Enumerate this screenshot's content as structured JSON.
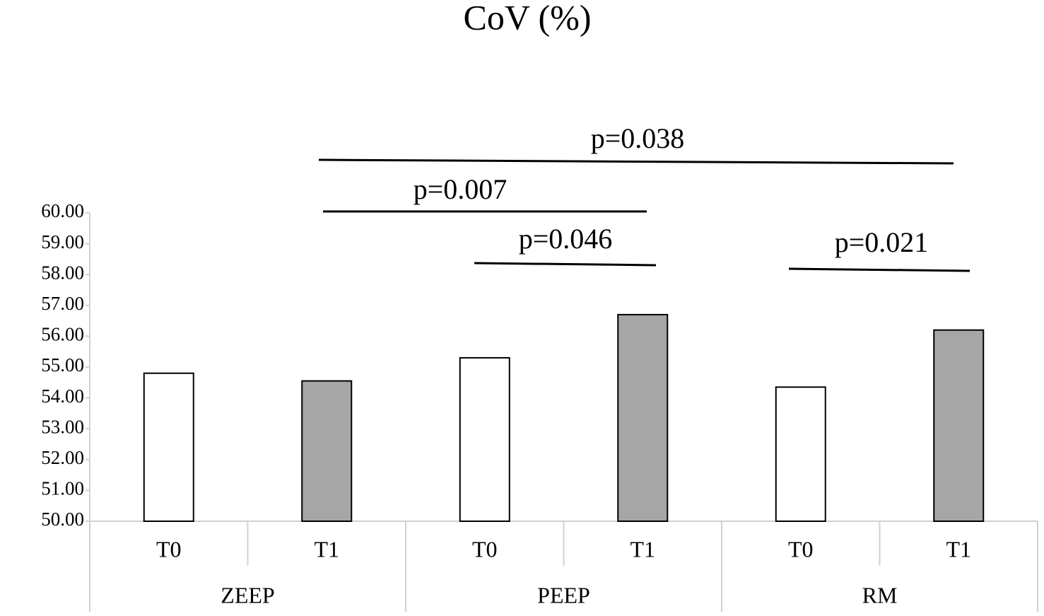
{
  "chart_data": {
    "type": "bar",
    "title": "CoV (%)",
    "categories": [
      "ZEEP",
      "PEEP",
      "RM"
    ],
    "series": [
      {
        "name": "T0",
        "color": "#ffffff",
        "values": [
          54.8,
          55.3,
          54.35
        ]
      },
      {
        "name": "T1",
        "color": "#a6a6a6",
        "values": [
          54.55,
          56.7,
          56.2
        ]
      }
    ],
    "ylim": [
      50,
      60
    ],
    "yticks": [
      {
        "value": 50,
        "label": "50.00"
      },
      {
        "value": 51,
        "label": "51.00"
      },
      {
        "value": 52,
        "label": "52.00"
      },
      {
        "value": 53,
        "label": "53.00"
      },
      {
        "value": 54,
        "label": "54.00"
      },
      {
        "value": 55,
        "label": "55.00"
      },
      {
        "value": 56,
        "label": "56.00"
      },
      {
        "value": 57,
        "label": "57.00"
      },
      {
        "value": 58,
        "label": "58.00"
      },
      {
        "value": 59,
        "label": "59.00"
      },
      {
        "value": 60,
        "label": "60.00"
      }
    ],
    "annotations": [
      "p=0.038",
      "p=0.007",
      "p=0.046",
      "p=0.021"
    ]
  }
}
